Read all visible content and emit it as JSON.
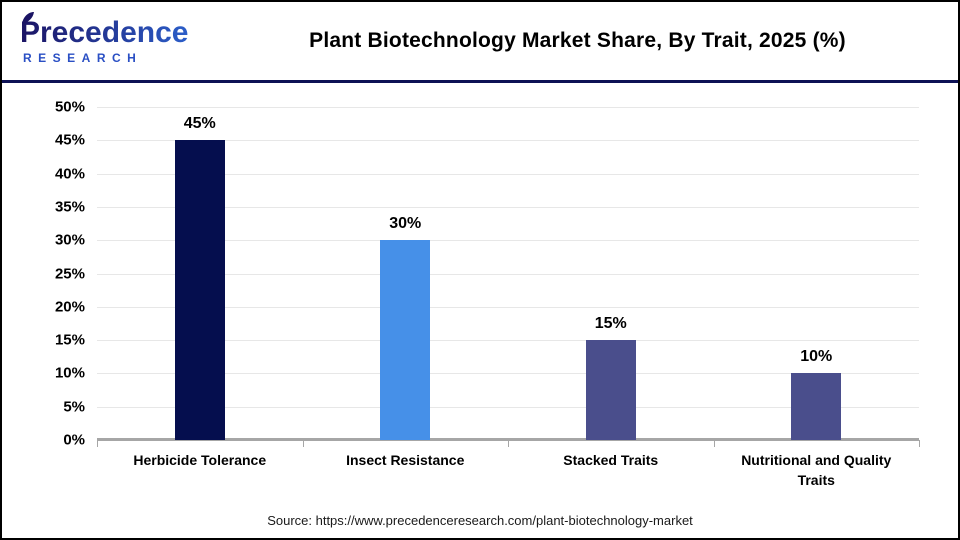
{
  "header": {
    "logo_line1": "Precedence",
    "logo_line2": "RESEARCH",
    "title": "Plant Biotechnology Market Share, By Trait, 2025 (%)"
  },
  "chart_data": {
    "type": "bar",
    "title": "Plant Biotechnology Market Share, By Trait, 2025 (%)",
    "categories": [
      "Herbicide Tolerance",
      "Insect Resistance",
      "Stacked Traits",
      "Nutritional and Quality Traits"
    ],
    "values": [
      45,
      30,
      15,
      10
    ],
    "value_labels": [
      "45%",
      "30%",
      "15%",
      "10%"
    ],
    "bar_colors": [
      "#050e4e",
      "#4690e8",
      "#4a4e8c",
      "#4a4e8c"
    ],
    "xlabel": "",
    "ylabel": "",
    "ylim": [
      0,
      50
    ],
    "ytick_step": 5,
    "ytick_labels": [
      "50%",
      "45%",
      "40%",
      "35%",
      "30%",
      "25%",
      "20%",
      "15%",
      "10%",
      "5%",
      "0%"
    ],
    "grid": true,
    "legend": false
  },
  "colors": {
    "bar_navy": "#050e4e",
    "bar_blue": "#4690e8",
    "bar_slate": "#4a4e8c",
    "separator_navy": "#0d1155",
    "gridline": "#e7e7e7",
    "axis_line": "#a6a6a6",
    "logo_navy": "#1b1464",
    "logo_blue": "#2f6fe0"
  },
  "footer": {
    "source": "Source: https://www.precedenceresearch.com/plant-biotechnology-market"
  }
}
